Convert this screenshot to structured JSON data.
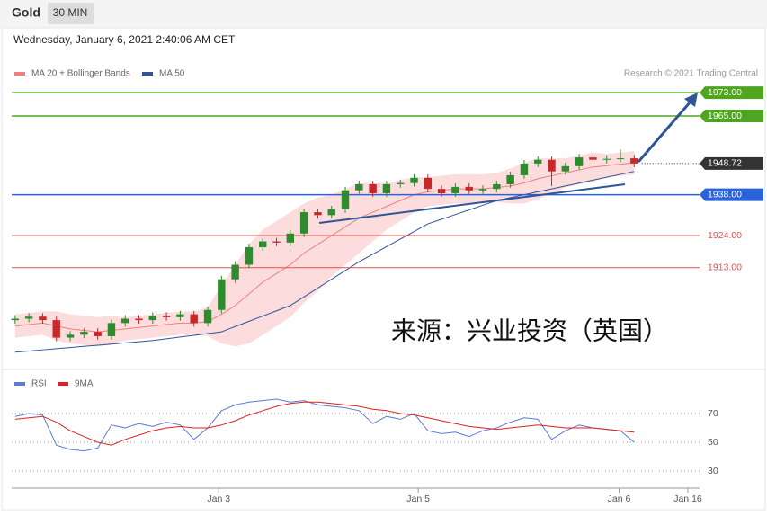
{
  "header": {
    "symbol": "Gold",
    "timeframe": "30 MIN",
    "datetime": "Wednesday, January 6, 2021 2:40:06 AM CET"
  },
  "chart_data": [
    {
      "type": "candlestick",
      "copyright": "Research © 2021 Trading Central",
      "watermark": "来源：兴业投资（英国）",
      "x": [
        0,
        1,
        2,
        3,
        4,
        5,
        6,
        7,
        8,
        9,
        10,
        11,
        12,
        13,
        14,
        15,
        16,
        17,
        18,
        19,
        20,
        21,
        22,
        23,
        24,
        25,
        26,
        27,
        28,
        29,
        30,
        31,
        32,
        33,
        34,
        35,
        36,
        37,
        38,
        39,
        40,
        41,
        42,
        43,
        44,
        45
      ],
      "open": [
        1895,
        1895.5,
        1896.2,
        1895,
        1889,
        1890,
        1891,
        1889.5,
        1894,
        1895.5,
        1895,
        1896.5,
        1896,
        1897,
        1894,
        1898.5,
        1909,
        1914,
        1920,
        1922,
        1921.6,
        1924.7,
        1932,
        1931,
        1933,
        1939.5,
        1941.6,
        1938.5,
        1941.6,
        1942,
        1943.8,
        1940,
        1938.5,
        1940.7,
        1939.5,
        1940,
        1941.6,
        1944.7,
        1948.7,
        1950,
        1946,
        1947.8,
        1950.8,
        1950,
        1950.3,
        1950.5
      ],
      "high": [
        1896.7,
        1897.4,
        1897.4,
        1896.2,
        1891.2,
        1892.2,
        1892.2,
        1895.2,
        1896.7,
        1896.7,
        1897.7,
        1897.7,
        1898.2,
        1898.2,
        1899.7,
        1910.2,
        1915.2,
        1921.2,
        1923.2,
        1923.2,
        1925.9,
        1933.2,
        1933.2,
        1934.2,
        1940.7,
        1942.8,
        1942.8,
        1942.8,
        1943.2,
        1945,
        1945,
        1941.2,
        1941.9,
        1941.9,
        1941.2,
        1942.8,
        1945.9,
        1949.9,
        1951.2,
        1951.2,
        1949,
        1952,
        1952,
        1951.5,
        1953.5,
        1951.7
      ],
      "low": [
        1893.8,
        1894.3,
        1893.8,
        1887.8,
        1887.8,
        1888.8,
        1888.3,
        1888.3,
        1892.8,
        1893.8,
        1893.8,
        1894.8,
        1894.8,
        1892.8,
        1892.8,
        1897.3,
        1907.8,
        1912.8,
        1918.8,
        1920.4,
        1920.4,
        1923.5,
        1929.8,
        1929.8,
        1931.8,
        1938.3,
        1937.3,
        1937.3,
        1940.4,
        1940.8,
        1938.8,
        1937.3,
        1937.3,
        1938.3,
        1938.3,
        1938.8,
        1940.4,
        1943.5,
        1947.5,
        1941,
        1944.8,
        1946.6,
        1948.8,
        1948.8,
        1949.1,
        1947.5
      ],
      "close": [
        1895.5,
        1896.2,
        1895,
        1889,
        1890,
        1891,
        1889.5,
        1894,
        1895.5,
        1895,
        1896.5,
        1896,
        1897,
        1894,
        1898.5,
        1909,
        1914,
        1920,
        1922,
        1921.6,
        1924.7,
        1932,
        1931,
        1933,
        1939.5,
        1941.6,
        1938.5,
        1941.6,
        1942,
        1943.8,
        1940,
        1938.5,
        1940.7,
        1939.5,
        1940,
        1941.6,
        1944.7,
        1948.7,
        1950,
        1946,
        1947.8,
        1950.8,
        1950,
        1950.3,
        1950.5,
        1948.72
      ],
      "up_color": "#2e8b2e",
      "down_color": "#c8282a",
      "series": [
        {
          "name": "MA 20 + Bollinger Bands",
          "color": "#f08080",
          "band_color": "#fcdcdc",
          "values": [
            1893,
            1893.5,
            1894,
            1893,
            1892,
            1891.5,
            1891,
            1891.5,
            1892,
            1892.5,
            1893,
            1893.5,
            1894,
            1894,
            1894.5,
            1897,
            1900,
            1904,
            1908,
            1911,
            1914,
            1918,
            1921,
            1924,
            1927,
            1930,
            1932,
            1934,
            1936,
            1938,
            1939,
            1939.5,
            1940,
            1940,
            1940,
            1940.5,
            1941,
            1942,
            1943.5,
            1944.5,
            1945.5,
            1946.5,
            1947.5,
            1948,
            1948.5,
            1949
          ],
          "upper": [
            1897,
            1897.5,
            1898,
            1898,
            1897,
            1896.5,
            1896,
            1896.5,
            1896,
            1896.5,
            1897,
            1897.5,
            1898,
            1898,
            1899.5,
            1907,
            1914,
            1921,
            1926,
            1929,
            1932,
            1935,
            1937,
            1938,
            1940,
            1942,
            1942,
            1942,
            1943,
            1944,
            1944,
            1944.5,
            1945,
            1945,
            1945,
            1945.5,
            1947,
            1949,
            1950.5,
            1950.5,
            1950.5,
            1951.5,
            1952.5,
            1952,
            1952.5,
            1953
          ],
          "lower": [
            1889,
            1889.5,
            1890,
            1888,
            1887,
            1886.5,
            1886,
            1886.5,
            1888,
            1888.5,
            1889,
            1889.5,
            1890,
            1890,
            1889.5,
            1887,
            1886,
            1887,
            1890,
            1893,
            1896,
            1901,
            1905,
            1910,
            1914,
            1918,
            1922,
            1926,
            1929,
            1932,
            1934,
            1934.5,
            1935,
            1935,
            1935,
            1935.5,
            1935,
            1935,
            1936.5,
            1938.5,
            1940.5,
            1941.5,
            1942.5,
            1944,
            1944.5,
            1945
          ]
        },
        {
          "name": "MA 50",
          "color": "#2f5597",
          "values": [
            1884,
            1884.4,
            1884.8,
            1885.2,
            1885.6,
            1886,
            1886.4,
            1886.8,
            1887.2,
            1887.6,
            1888,
            1888.6,
            1889.2,
            1889.8,
            1890.4,
            1891,
            1892.8,
            1894.6,
            1896.4,
            1898.2,
            1900,
            1903,
            1906,
            1909,
            1912,
            1915,
            1917.6,
            1920.2,
            1922.8,
            1925.4,
            1928,
            1929.6,
            1931.2,
            1932.8,
            1934.4,
            1936,
            1937,
            1938,
            1939,
            1940,
            1941,
            1942,
            1943,
            1944,
            1945,
            1946
          ]
        }
      ],
      "levels": [
        {
          "value": 1973,
          "label": "1973.00",
          "color": "#4fa51f",
          "boxed": true
        },
        {
          "value": 1965,
          "label": "1965.00",
          "color": "#4fa51f",
          "boxed": true
        },
        {
          "value": 1938,
          "label": "1938.00",
          "color": "#2a62d8",
          "boxed": true
        },
        {
          "value": 1924,
          "label": "1924.00",
          "color": "#e05050",
          "boxed": false
        },
        {
          "value": 1913,
          "label": "1913.00",
          "color": "#e05050",
          "boxed": false
        }
      ],
      "ylim": [
        1879,
        1975.5
      ],
      "xlim": [
        -0.25,
        49.75
      ]
    },
    {
      "type": "line",
      "series": [
        {
          "name": "RSI",
          "color": "#5b7bd5",
          "values": [
            68,
            70,
            69,
            48,
            45,
            44,
            46,
            62,
            60,
            63,
            61,
            64,
            62,
            52,
            60,
            72,
            76,
            78,
            79,
            80,
            78,
            79,
            76,
            75,
            74,
            72,
            63,
            68,
            66,
            70,
            58,
            56,
            57,
            54,
            58,
            60,
            64,
            67,
            66,
            52,
            58,
            62,
            60,
            59,
            58,
            50
          ]
        },
        {
          "name": "9MA",
          "color": "#e02020",
          "values": [
            66,
            67,
            68,
            64,
            58,
            54,
            50,
            48,
            52,
            55,
            58,
            60,
            61,
            60,
            60,
            62,
            65,
            69,
            72,
            75,
            77,
            78,
            78,
            77,
            76,
            75,
            73,
            72,
            70,
            69,
            67,
            65,
            63,
            61,
            60,
            59,
            60,
            61,
            62,
            61,
            60,
            60,
            60,
            59,
            58,
            57
          ]
        }
      ],
      "ylim": [
        20,
        82.5
      ],
      "yticks": [
        30,
        50,
        70
      ],
      "grid": true,
      "xlim": [
        -0.25,
        49.75
      ],
      "xticks": [
        {
          "value": 14.8,
          "label": "Jan 3"
        },
        {
          "value": 29.3,
          "label": "Jan 5"
        },
        {
          "value": 43.9,
          "label": "Jan 6"
        },
        {
          "value": 48.9,
          "label": "Jan 16"
        }
      ]
    }
  ]
}
